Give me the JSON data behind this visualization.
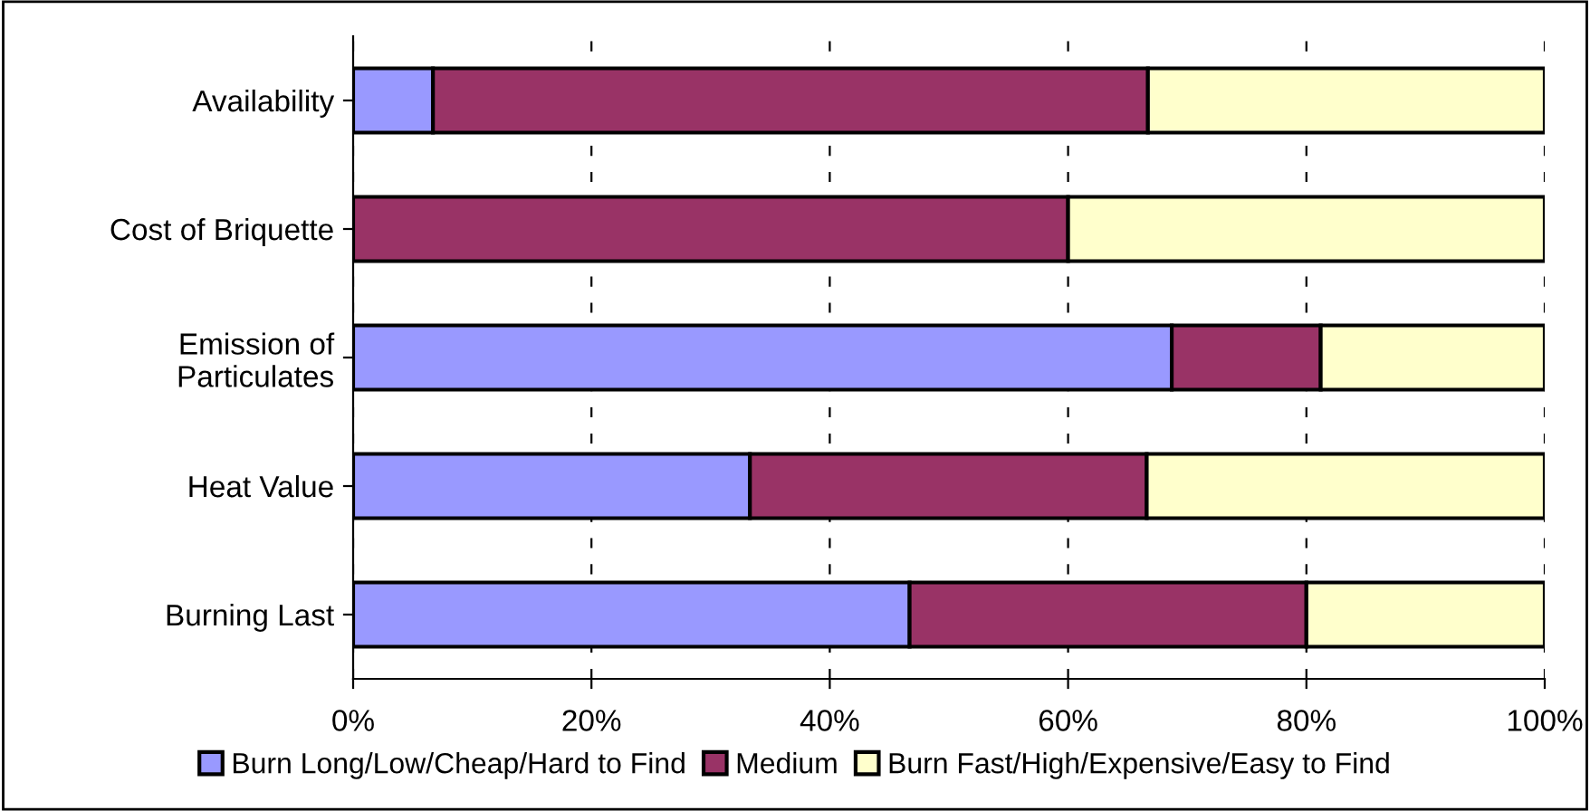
{
  "chart_data": {
    "type": "bar",
    "orientation": "horizontal",
    "stacked": true,
    "categories": [
      "Availability",
      "Cost of Briquette",
      "Emission of\nParticulates",
      "Heat Value",
      "Burning Last"
    ],
    "series": [
      {
        "name": "Burn Long/Low/Cheap/Hard to Find",
        "color": "#9999ff",
        "values": [
          6.7,
          0,
          68.7,
          33.3,
          46.7
        ]
      },
      {
        "name": "Medium",
        "color": "#993366",
        "values": [
          60,
          60,
          12.5,
          33.3,
          33.3
        ]
      },
      {
        "name": "Burn Fast/High/Expensive/Easy to Find",
        "color": "#ffffcc",
        "values": [
          33.3,
          40,
          18.8,
          33.4,
          20
        ]
      }
    ],
    "xlim": [
      0,
      100
    ],
    "xticks": [
      {
        "value": 0,
        "label": "0%"
      },
      {
        "value": 20,
        "label": "20%"
      },
      {
        "value": 40,
        "label": "40%"
      },
      {
        "value": 60,
        "label": "60%"
      },
      {
        "value": 80,
        "label": "80%"
      },
      {
        "value": 100,
        "label": "100%"
      }
    ],
    "grid": "x",
    "legend": "bottom"
  }
}
